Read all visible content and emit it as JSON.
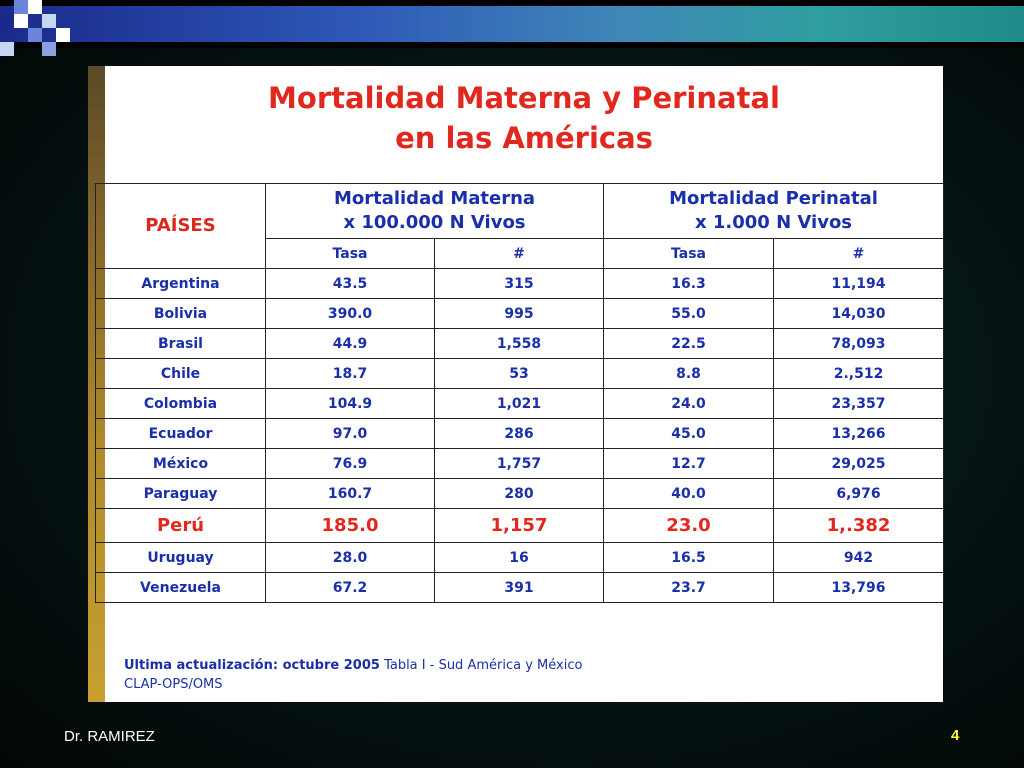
{
  "slide": {
    "title_line1": "Mortalidad Materna y Perinatal",
    "title_line2": "en las Américas",
    "author": "Dr. RAMIREZ",
    "page_number": "4"
  },
  "table": {
    "countries_header": "PAÍSES",
    "group_maternal_line1": "Mortalidad Materna",
    "group_maternal_line2": "x 100.000 N Vivos",
    "group_perinatal_line1": "Mortalidad Perinatal",
    "group_perinatal_line2": "x 1.000 N Vivos",
    "sub_headers": [
      "Tasa",
      "#",
      "Tasa",
      "#"
    ],
    "rows": [
      {
        "country": "Argentina",
        "mat_rate": "43.5",
        "mat_num": "315",
        "peri_rate": "16.3",
        "peri_num": "11,194"
      },
      {
        "country": "Bolivia",
        "mat_rate": "390.0",
        "mat_num": "995",
        "peri_rate": "55.0",
        "peri_num": "14,030"
      },
      {
        "country": "Brasil",
        "mat_rate": "44.9",
        "mat_num": "1,558",
        "peri_rate": "22.5",
        "peri_num": "78,093"
      },
      {
        "country": "Chile",
        "mat_rate": "18.7",
        "mat_num": "53",
        "peri_rate": "8.8",
        "peri_num": "2.,512"
      },
      {
        "country": "Colombia",
        "mat_rate": "104.9",
        "mat_num": "1,021",
        "peri_rate": "24.0",
        "peri_num": "23,357"
      },
      {
        "country": "Ecuador",
        "mat_rate": "97.0",
        "mat_num": "286",
        "peri_rate": "45.0",
        "peri_num": "13,266"
      },
      {
        "country": "México",
        "mat_rate": "76.9",
        "mat_num": "1,757",
        "peri_rate": "12.7",
        "peri_num": "29,025"
      },
      {
        "country": "Paraguay",
        "mat_rate": "160.7",
        "mat_num": "280",
        "peri_rate": "40.0",
        "peri_num": "6,976"
      },
      {
        "country": "Perú",
        "mat_rate": "185.0",
        "mat_num": "1,157",
        "peri_rate": "23.0",
        "peri_num": "1,.382"
      },
      {
        "country": "Uruguay",
        "mat_rate": "28.0",
        "mat_num": "16",
        "peri_rate": "16.5",
        "peri_num": "942"
      },
      {
        "country": "Venezuela",
        "mat_rate": "67.2",
        "mat_num": "391",
        "peri_rate": "23.7",
        "peri_num": "13,796"
      }
    ],
    "highlight_country": "Perú"
  },
  "footer": {
    "update_label": "Ultima actualización: octubre 2005",
    "table_ref": "Tabla I - Sud América y México",
    "source": "CLAP-OPS/OMS"
  },
  "colors": {
    "title_red": "#e0281e",
    "table_blue": "#1a2fa8",
    "page_number_yellow": "#ffff33"
  }
}
